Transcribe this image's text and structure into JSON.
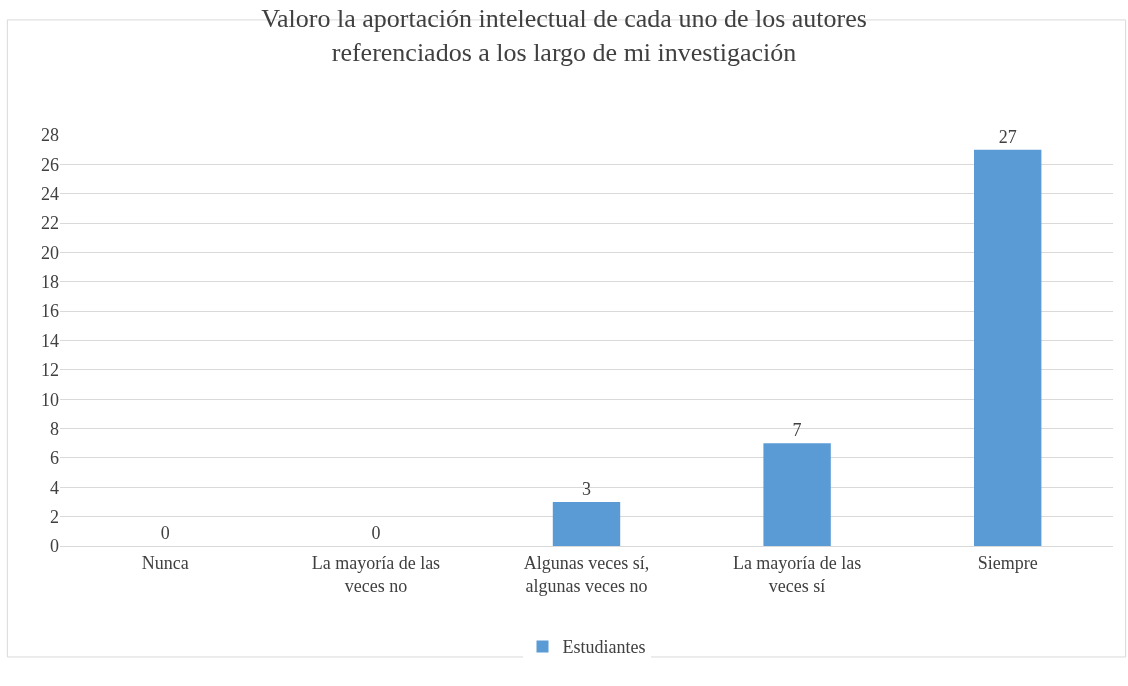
{
  "chart_data": {
    "type": "bar",
    "title": "Valoro la aportación intelectual de cada uno de los autores referenciados a los largo de mi investigación",
    "categories": [
      "Nunca",
      "La mayoría de las veces no",
      "Algunas veces sí, algunas veces no",
      "La mayoría de las veces sí",
      "Siempre"
    ],
    "series": [
      {
        "name": "Estudiantes",
        "color": "#5b9bd5",
        "values": [
          0,
          0,
          3,
          7,
          27
        ]
      }
    ],
    "ylim": [
      0,
      28
    ],
    "yticks": [
      0,
      2,
      4,
      6,
      8,
      10,
      12,
      14,
      16,
      18,
      20,
      22,
      24,
      26,
      28
    ],
    "grid": "y",
    "legend": "bottom",
    "data_labels": true
  }
}
